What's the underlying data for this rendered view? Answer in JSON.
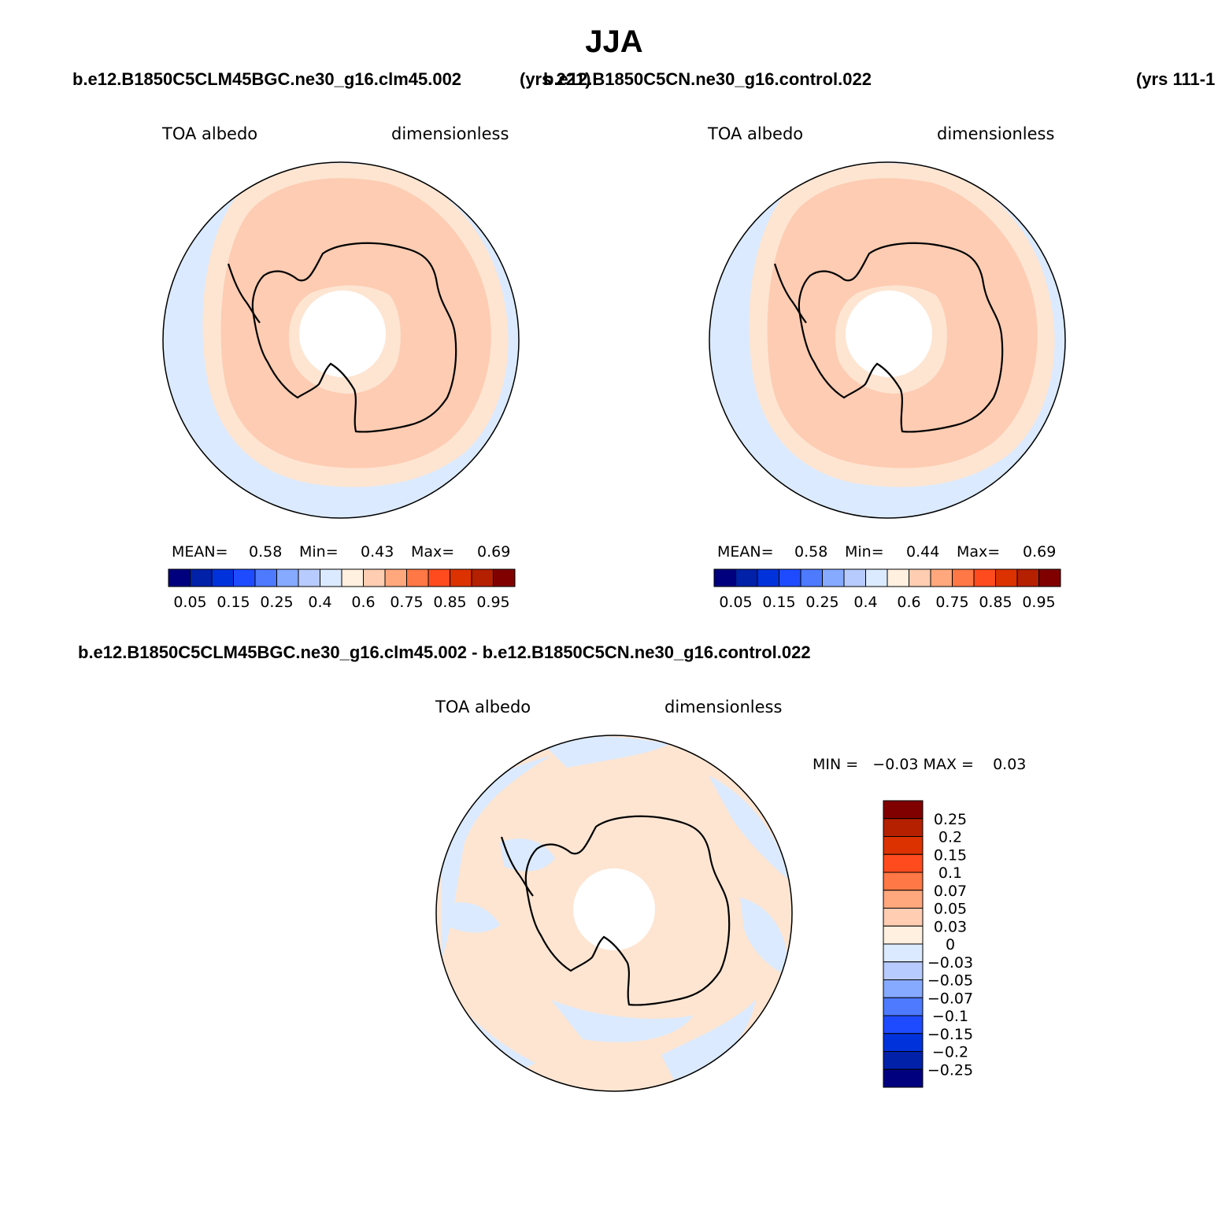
{
  "title": "JJA",
  "top_left_case": "b.e12.B1850C5CLM45BGC.ne30_g16.clm45.002",
  "top_left_years": "(yrs 221)",
  "top_right_case": "b.e12.B1850C5CN.ne30_g16.control.022",
  "top_right_years": "(yrs 111-1",
  "diff_title": "b.e12.B1850C5CLM45BGC.ne30_g16.clm45.002 - b.e12.B1850C5CN.ne30_g16.control.022",
  "panels": [
    {
      "variable": "TOA albedo",
      "units": "dimensionless",
      "mean_label": "MEAN=",
      "mean": "0.58",
      "min_label": "Min=",
      "min": "0.43",
      "max_label": "Max=",
      "max": "0.69"
    },
    {
      "variable": "TOA albedo",
      "units": "dimensionless",
      "mean_label": "MEAN=",
      "mean": "0.58",
      "min_label": "Min=",
      "min": "0.44",
      "max_label": "Max=",
      "max": "0.69"
    },
    {
      "variable": "TOA albedo",
      "units": "dimensionless",
      "minmax_text": "MIN =   −0.03 MAX =    0.03"
    }
  ],
  "abs_colorbar": {
    "colors": [
      "#00007f",
      "#0021a8",
      "#0032dc",
      "#1e4bff",
      "#4d7aff",
      "#86aaff",
      "#b8cbff",
      "#dbeafe",
      "#fff0e0",
      "#ffcdb2",
      "#ffa77d",
      "#ff7845",
      "#ff4b1e",
      "#dc3200",
      "#b42000",
      "#800000"
    ],
    "labels": [
      "0.05",
      "0.15",
      "0.25",
      "0.4",
      "0.6",
      "0.75",
      "0.85",
      "0.95"
    ]
  },
  "diff_colorbar": {
    "colors": [
      "#800000",
      "#b42000",
      "#dc3200",
      "#ff4b1e",
      "#ff7845",
      "#ffa77d",
      "#ffcdb2",
      "#fff0e0",
      "#dbeafe",
      "#b8cbff",
      "#86aaff",
      "#4d7aff",
      "#1e4bff",
      "#0032dc",
      "#0021a8",
      "#00007f"
    ],
    "labels": [
      "0.25",
      "0.2",
      "0.15",
      "0.1",
      "0.07",
      "0.05",
      "0.03",
      "0",
      "−0.03",
      "−0.05",
      "−0.07",
      "−0.1",
      "−0.15",
      "−0.2",
      "−0.25"
    ]
  },
  "map_colors": {
    "ocean_low": "#dbeafe",
    "mid": "#fde5d2",
    "high": "#fdccb2",
    "pole": "#ffffff",
    "coast": "#000000"
  }
}
